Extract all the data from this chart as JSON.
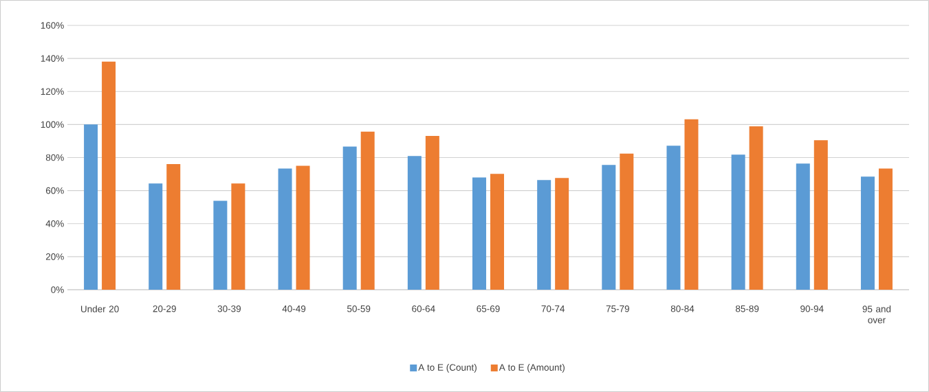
{
  "chart_data": {
    "type": "bar",
    "categories": [
      "Under 20",
      "20-29",
      "30-39",
      "40-49",
      "50-59",
      "60-64",
      "65-69",
      "70-74",
      "75-79",
      "80-84",
      "85-89",
      "90-94",
      "95 and over"
    ],
    "series": [
      {
        "name": "A to E (Count)",
        "color": "#5b9bd5",
        "values": [
          100,
          64.3,
          53.8,
          73.4,
          86.7,
          80.9,
          68.0,
          66.4,
          75.5,
          87.2,
          81.8,
          76.4,
          68.5
        ]
      },
      {
        "name": "A to E (Amount)",
        "color": "#ed7d31",
        "values": [
          138.1,
          76.1,
          64.3,
          75.0,
          95.7,
          93.1,
          70.1,
          67.6,
          82.4,
          103.2,
          98.9,
          90.5,
          73.4
        ]
      }
    ],
    "ylim": [
      0,
      160
    ],
    "yticks": [
      {
        "value": 0,
        "label": "0%"
      },
      {
        "value": 20,
        "label": "20%"
      },
      {
        "value": 40,
        "label": "40%"
      },
      {
        "value": 60,
        "label": "60%"
      },
      {
        "value": 80,
        "label": "80%"
      },
      {
        "value": 100,
        "label": "100%"
      },
      {
        "value": 120,
        "label": "120%"
      },
      {
        "value": 140,
        "label": "140%"
      },
      {
        "value": 160,
        "label": "160%"
      }
    ],
    "grid": "y",
    "legend": "bottom"
  }
}
